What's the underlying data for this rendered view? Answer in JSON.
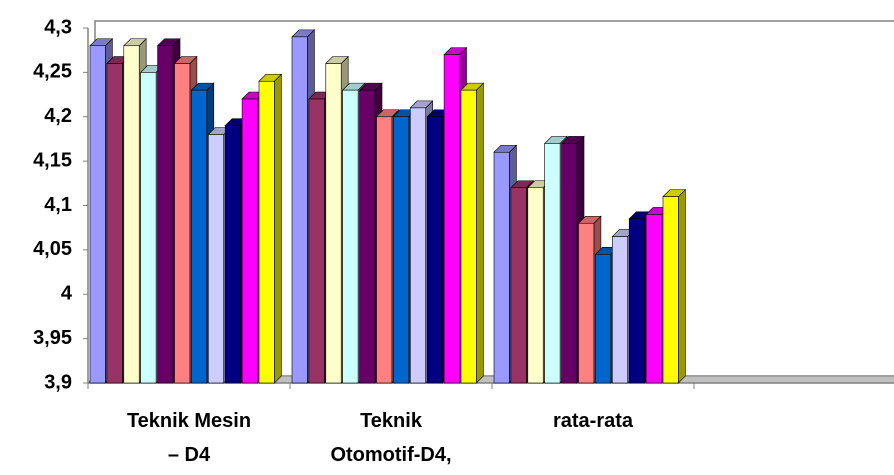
{
  "chart_data": {
    "type": "bar3d",
    "categories": [
      "Teknik Mesin – D4",
      "Teknik Otomotif-D4,",
      "rata-rata",
      null
    ],
    "series": [
      {
        "color": "#9999ff",
        "values": [
          4.28,
          4.29,
          4.16,
          null
        ]
      },
      {
        "color": "#993366",
        "values": [
          4.26,
          4.22,
          4.12,
          null
        ]
      },
      {
        "color": "#ffffcc",
        "values": [
          4.28,
          4.26,
          4.12,
          null
        ]
      },
      {
        "color": "#ccffff",
        "values": [
          4.25,
          4.23,
          4.17,
          null
        ]
      },
      {
        "color": "#660066",
        "values": [
          4.28,
          4.23,
          4.17,
          null
        ]
      },
      {
        "color": "#ff8080",
        "values": [
          4.26,
          4.2,
          4.08,
          null
        ]
      },
      {
        "color": "#0066cc",
        "values": [
          4.23,
          4.2,
          4.045,
          null
        ]
      },
      {
        "color": "#ccccff",
        "values": [
          4.18,
          4.21,
          4.065,
          null
        ]
      },
      {
        "color": "#000080",
        "values": [
          4.19,
          4.2,
          4.085,
          null
        ]
      },
      {
        "color": "#ff00ff",
        "values": [
          4.22,
          4.27,
          4.09,
          null
        ]
      },
      {
        "color": "#ffff00",
        "values": [
          4.24,
          4.23,
          4.11,
          null
        ]
      }
    ],
    "ylim": [
      3.9,
      4.3
    ],
    "yticks": [
      {
        "value": 3.9,
        "label": "3,9"
      },
      {
        "value": 3.95,
        "label": "3,95"
      },
      4,
      {
        "value": 4.05,
        "label": "4,05"
      },
      {
        "value": 4.1,
        "label": "4,1"
      },
      {
        "value": 4.15,
        "label": "4,15"
      },
      {
        "value": 4.2,
        "label": "4,2"
      },
      {
        "value": 4.25,
        "label": "4,25"
      },
      {
        "value": 4.3,
        "label": "4,3"
      }
    ]
  }
}
